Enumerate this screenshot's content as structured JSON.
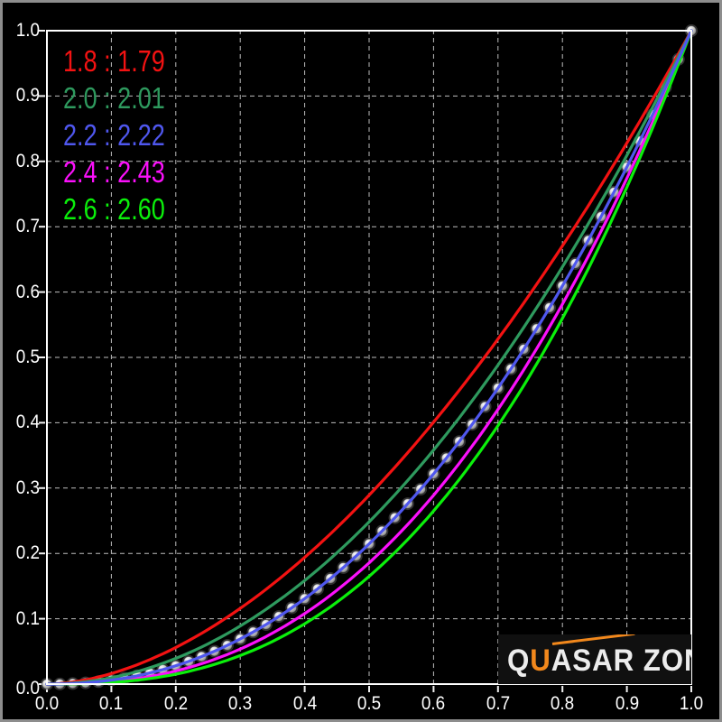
{
  "page": {
    "background": "#000000",
    "frame_color": "#8d8d8d"
  },
  "chart_data": {
    "type": "line",
    "xlabel": "",
    "ylabel": "",
    "x_range": [
      0.0,
      1.0
    ],
    "y_range": [
      0.0,
      1.0
    ],
    "grid": {
      "step": 0.1,
      "style": "dashed",
      "color": "#c9c9c9"
    },
    "x_tick_labels": [
      "0.0",
      "0.1",
      "0.2",
      "0.3",
      "0.4",
      "0.5",
      "0.6",
      "0.7",
      "0.8",
      "0.9",
      "1.0"
    ],
    "y_tick_labels": [
      "0.0",
      "0.1",
      "0.2",
      "0.3",
      "0.4",
      "0.5",
      "0.6",
      "0.7",
      "0.8",
      "0.9",
      "1.0"
    ],
    "series": [
      {
        "name": "gamma-1.8",
        "target": "1.8",
        "measured": "1.79",
        "gamma": 1.79,
        "color": "#f31212",
        "formula": "y = x^1.79",
        "points": [
          [
            0,
            0
          ],
          [
            0.1,
            0.016
          ],
          [
            0.2,
            0.056
          ],
          [
            0.3,
            0.116
          ],
          [
            0.4,
            0.194
          ],
          [
            0.5,
            0.289
          ],
          [
            0.6,
            0.401
          ],
          [
            0.7,
            0.528
          ],
          [
            0.8,
            0.671
          ],
          [
            0.9,
            0.828
          ],
          [
            1,
            1
          ]
        ]
      },
      {
        "name": "gamma-2.0",
        "target": "2.0",
        "measured": "2.01",
        "gamma": 2.01,
        "color": "#2e9a5e",
        "formula": "y = x^2.01",
        "points": [
          [
            0,
            0
          ],
          [
            0.1,
            0.01
          ],
          [
            0.2,
            0.039
          ],
          [
            0.3,
            0.089
          ],
          [
            0.4,
            0.158
          ],
          [
            0.5,
            0.248
          ],
          [
            0.6,
            0.358
          ],
          [
            0.7,
            0.488
          ],
          [
            0.8,
            0.639
          ],
          [
            0.9,
            0.809
          ],
          [
            1,
            1
          ]
        ]
      },
      {
        "name": "gamma-2.2",
        "target": "2.2",
        "measured": "2.22",
        "gamma": 2.22,
        "color": "#4f57ee",
        "formula": "y = x^2.22",
        "points": [
          [
            0,
            0
          ],
          [
            0.1,
            0.006
          ],
          [
            0.2,
            0.028
          ],
          [
            0.3,
            0.069
          ],
          [
            0.4,
            0.131
          ],
          [
            0.5,
            0.215
          ],
          [
            0.6,
            0.322
          ],
          [
            0.7,
            0.453
          ],
          [
            0.8,
            0.609
          ],
          [
            0.9,
            0.791
          ],
          [
            1,
            1
          ]
        ]
      },
      {
        "name": "gamma-2.4",
        "target": "2.4",
        "measured": "2.43",
        "gamma": 2.43,
        "color": "#fb10fb",
        "formula": "y = x^2.43",
        "points": [
          [
            0,
            0
          ],
          [
            0.1,
            0.004
          ],
          [
            0.2,
            0.02
          ],
          [
            0.3,
            0.054
          ],
          [
            0.4,
            0.108
          ],
          [
            0.5,
            0.186
          ],
          [
            0.6,
            0.289
          ],
          [
            0.7,
            0.42
          ],
          [
            0.8,
            0.582
          ],
          [
            0.9,
            0.774
          ],
          [
            1,
            1
          ]
        ]
      },
      {
        "name": "gamma-2.6",
        "target": "2.6",
        "measured": "2.60",
        "gamma": 2.6,
        "color": "#0bf00b",
        "formula": "y = x^2.60",
        "points": [
          [
            0,
            0
          ],
          [
            0.1,
            0.003
          ],
          [
            0.2,
            0.015
          ],
          [
            0.3,
            0.044
          ],
          [
            0.4,
            0.092
          ],
          [
            0.5,
            0.165
          ],
          [
            0.6,
            0.265
          ],
          [
            0.7,
            0.396
          ],
          [
            0.8,
            0.56
          ],
          [
            0.9,
            0.76
          ],
          [
            1,
            1
          ]
        ]
      }
    ],
    "measured_markers": {
      "name": "measured-luminance-points",
      "gamma": 2.22,
      "formula": "y = x^2.22",
      "x_start": 0.0,
      "x_step": 0.02,
      "count": 51,
      "marker": "gray-sphere",
      "line_color": "#e6e6e6"
    },
    "legend_position": "top-left"
  },
  "legend": {
    "items": [
      {
        "label": "1.8 : 1.79",
        "color": "#f31212"
      },
      {
        "label": "2.0 : 2.01",
        "color": "#2e9a5e"
      },
      {
        "label": "2.2 : 2.22",
        "color": "#4f57ee"
      },
      {
        "label": "2.4 : 2.43",
        "color": "#fb10fb"
      },
      {
        "label": "2.6 : 2.60",
        "color": "#0bf00b"
      }
    ]
  },
  "logo": {
    "text": "QUASAR ZONE",
    "q": "Q",
    "u": "U",
    "asar": "ASAR",
    "sep": " ",
    "zone": "ZONE",
    "accent_color": "#f2881c"
  }
}
